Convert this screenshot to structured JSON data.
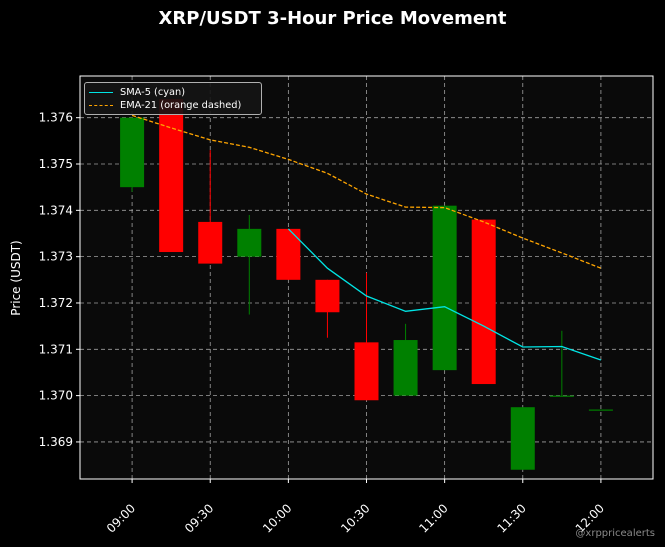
{
  "title": "XRP/USDT 3-Hour Price Movement",
  "watermark": "@xrppricealerts",
  "chart_data": {
    "type": "candlestick",
    "title": "XRP/USDT 3-Hour Price Movement",
    "ylabel": "Price (USDT)",
    "xlabel": "",
    "ylim": [
      1.3682,
      1.3769
    ],
    "yticks": [
      "1.369",
      "1.370",
      "1.371",
      "1.372",
      "1.373",
      "1.374",
      "1.375",
      "1.376"
    ],
    "xticks": [
      "09:00",
      "09:30",
      "10:00",
      "10:30",
      "11:00",
      "11:30",
      "12:00"
    ],
    "xlim_minutes": [
      -20,
      200
    ],
    "grid": true,
    "legend_position": "top-left",
    "colors": {
      "up": "#008000",
      "down": "#ff0000",
      "sma": "#00e5e5",
      "ema": "#ffa500",
      "background": "#0a0a0a"
    },
    "candles": [
      {
        "time": "09:00",
        "open": 1.3745,
        "high": 1.376,
        "low": 1.3744,
        "close": 1.376
      },
      {
        "time": "09:15",
        "open": 1.3764,
        "high": 1.3764,
        "low": 1.3731,
        "close": 1.3731
      },
      {
        "time": "09:30",
        "open": 1.37375,
        "high": 1.3753,
        "low": 1.37285,
        "close": 1.37285
      },
      {
        "time": "09:45",
        "open": 1.373,
        "high": 1.3739,
        "low": 1.37175,
        "close": 1.3736
      },
      {
        "time": "10:00",
        "open": 1.3736,
        "high": 1.3736,
        "low": 1.3725,
        "close": 1.3725
      },
      {
        "time": "10:15",
        "open": 1.3725,
        "high": 1.3725,
        "low": 1.37125,
        "close": 1.3718
      },
      {
        "time": "10:30",
        "open": 1.37115,
        "high": 1.37265,
        "low": 1.3699,
        "close": 1.3699
      },
      {
        "time": "10:45",
        "open": 1.37,
        "high": 1.37155,
        "low": 1.37,
        "close": 1.3712
      },
      {
        "time": "11:00",
        "open": 1.37055,
        "high": 1.3741,
        "low": 1.37055,
        "close": 1.3741
      },
      {
        "time": "11:15",
        "open": 1.3738,
        "high": 1.3738,
        "low": 1.37025,
        "close": 1.37025
      },
      {
        "time": "11:30",
        "open": 1.3684,
        "high": 1.36975,
        "low": 1.3684,
        "close": 1.36975
      },
      {
        "time": "11:45",
        "open": 1.37,
        "high": 1.3714,
        "low": 1.37,
        "close": 1.37
      },
      {
        "time": "12:00",
        "open": 1.3697,
        "high": 1.3697,
        "low": 1.3697,
        "close": 1.3697
      }
    ],
    "series": [
      {
        "name": "SMA-5 (cyan)",
        "style": "solid",
        "points": [
          {
            "time": "10:00",
            "value": 1.3736
          },
          {
            "time": "10:15",
            "value": 1.37275
          },
          {
            "time": "10:30",
            "value": 1.37215
          },
          {
            "time": "10:45",
            "value": 1.37182
          },
          {
            "time": "11:00",
            "value": 1.37192
          },
          {
            "time": "11:15",
            "value": 1.3715
          },
          {
            "time": "11:30",
            "value": 1.37105
          },
          {
            "time": "11:45",
            "value": 1.37106
          },
          {
            "time": "12:00",
            "value": 1.37077
          }
        ]
      },
      {
        "name": "EMA-21 (orange dashed)",
        "style": "dashed",
        "points": [
          {
            "time": "09:00",
            "value": 1.37605
          },
          {
            "time": "09:15",
            "value": 1.37578
          },
          {
            "time": "09:30",
            "value": 1.37552
          },
          {
            "time": "09:45",
            "value": 1.37536
          },
          {
            "time": "10:00",
            "value": 1.3751
          },
          {
            "time": "10:15",
            "value": 1.3748
          },
          {
            "time": "10:30",
            "value": 1.37435
          },
          {
            "time": "10:45",
            "value": 1.37407
          },
          {
            "time": "11:00",
            "value": 1.37406
          },
          {
            "time": "11:15",
            "value": 1.37375
          },
          {
            "time": "11:30",
            "value": 1.3734
          },
          {
            "time": "11:45",
            "value": 1.37308
          },
          {
            "time": "12:00",
            "value": 1.37275
          }
        ]
      }
    ]
  }
}
